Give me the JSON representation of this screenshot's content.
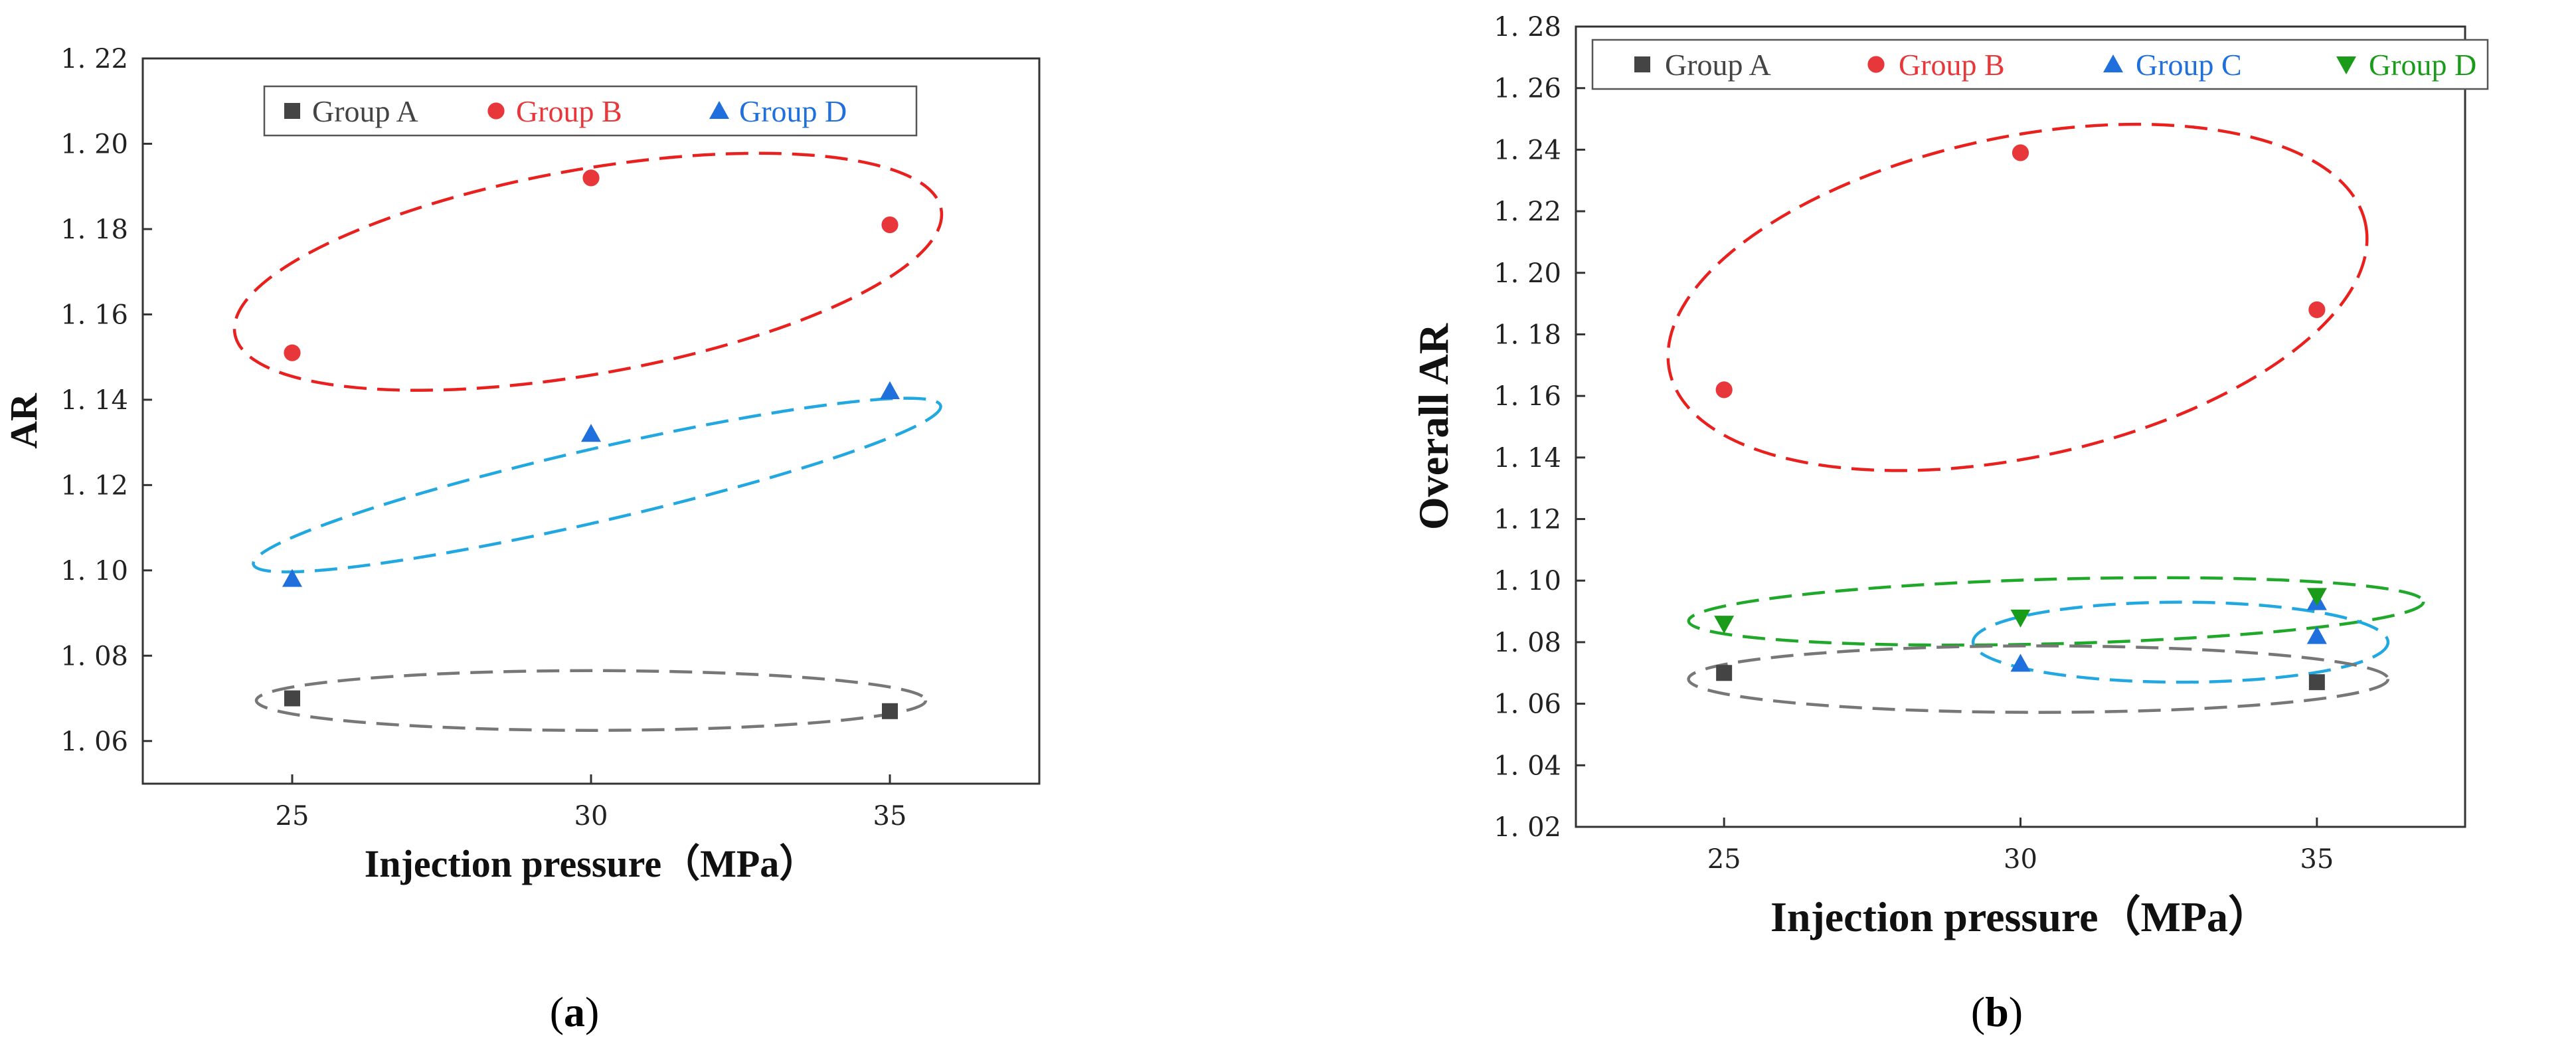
{
  "chart_data": [
    {
      "type": "scatter",
      "panel_label": "a",
      "title": "",
      "xlabel": "Injection pressure（MPa）",
      "ylabel": "AR",
      "xlim": [
        22.5,
        37.5
      ],
      "ylim": [
        1.05,
        1.22
      ],
      "xticks": [
        "25",
        "30",
        "35"
      ],
      "xtick_values": [
        25,
        30,
        35
      ],
      "yticks": [
        "1. 06",
        "1. 08",
        "1. 10",
        "1. 12",
        "1. 14",
        "1. 16",
        "1. 18",
        "1. 20",
        "1. 22"
      ],
      "ytick_values": [
        1.06,
        1.08,
        1.1,
        1.12,
        1.14,
        1.16,
        1.18,
        1.2,
        1.22
      ],
      "legend_position": "top",
      "series": [
        {
          "name": "Group A",
          "marker": "square",
          "color": "#444444",
          "x": [
            25,
            35
          ],
          "y": [
            1.07,
            1.067
          ]
        },
        {
          "name": "Group B",
          "marker": "circle",
          "color": "#e8373a",
          "x": [
            25,
            30,
            35
          ],
          "y": [
            1.151,
            1.192,
            1.181
          ]
        },
        {
          "name": "Group D",
          "marker": "triangle-up",
          "color": "#1f6fdc",
          "x": [
            25,
            30,
            35
          ],
          "y": [
            1.098,
            1.132,
            1.142
          ]
        }
      ],
      "ellipses": [
        {
          "series": "Group B",
          "color": "#e8201e",
          "cx": 29.95,
          "cy": 1.17,
          "rx": 6.0,
          "ry": 0.024,
          "angle_deg": -10
        },
        {
          "series": "Group D",
          "color": "#22a8e0",
          "cx": 30.1,
          "cy": 1.12,
          "rx": 5.9,
          "ry": 0.0085,
          "angle_deg": -13
        },
        {
          "series": "Group A",
          "color": "#777777",
          "cx": 30.0,
          "cy": 1.0695,
          "rx": 5.6,
          "ry": 0.007,
          "angle_deg": 0
        }
      ]
    },
    {
      "type": "scatter",
      "panel_label": "b",
      "title": "",
      "xlabel": "Injection pressure（MPa）",
      "ylabel": "Overall AR",
      "xlim": [
        22.5,
        37.5
      ],
      "ylim": [
        1.02,
        1.28
      ],
      "xticks": [
        "25",
        "30",
        "35"
      ],
      "xtick_values": [
        25,
        30,
        35
      ],
      "yticks": [
        "1. 02",
        "1. 04",
        "1. 06",
        "1. 08",
        "1. 10",
        "1. 12",
        "1. 14",
        "1. 16",
        "1. 18",
        "1. 20",
        "1. 22",
        "1. 24",
        "1. 26",
        "1. 28"
      ],
      "ytick_values": [
        1.02,
        1.04,
        1.06,
        1.08,
        1.1,
        1.12,
        1.14,
        1.16,
        1.18,
        1.2,
        1.22,
        1.24,
        1.26,
        1.28
      ],
      "legend_position": "top",
      "series": [
        {
          "name": "Group A",
          "marker": "square",
          "color": "#444444",
          "x": [
            25,
            35
          ],
          "y": [
            1.07,
            1.067
          ]
        },
        {
          "name": "Group B",
          "marker": "circle",
          "color": "#e8373a",
          "x": [
            25,
            30,
            35
          ],
          "y": [
            1.162,
            1.239,
            1.188
          ]
        },
        {
          "name": "Group C",
          "marker": "triangle-up",
          "color": "#1f6fdc",
          "x": [
            30,
            35,
            35
          ],
          "y": [
            1.073,
            1.082,
            1.093
          ]
        },
        {
          "name": "Group D",
          "marker": "triangle-down",
          "color": "#1a9b1a",
          "x": [
            25,
            30,
            35
          ],
          "y": [
            1.086,
            1.088,
            1.095
          ]
        }
      ],
      "ellipses": [
        {
          "series": "Group B",
          "color": "#e8201e",
          "cx": 29.95,
          "cy": 1.192,
          "rx": 6.0,
          "ry": 0.052,
          "angle_deg": -12
        },
        {
          "series": "Group D",
          "color": "#1fa82a",
          "cx": 30.6,
          "cy": 1.09,
          "rx": 6.2,
          "ry": 0.0105,
          "angle_deg": -1.5
        },
        {
          "series": "Group C",
          "color": "#22a8e0",
          "cx": 32.7,
          "cy": 1.08,
          "rx": 3.5,
          "ry": 0.013,
          "angle_deg": 0
        },
        {
          "series": "Group A",
          "color": "#777777",
          "cx": 30.3,
          "cy": 1.068,
          "rx": 5.9,
          "ry": 0.0108,
          "angle_deg": 0
        }
      ]
    }
  ],
  "captions": [
    {
      "open": "(",
      "letter": "a",
      "close": ")"
    },
    {
      "open": "(",
      "letter": "b",
      "close": ")"
    }
  ]
}
